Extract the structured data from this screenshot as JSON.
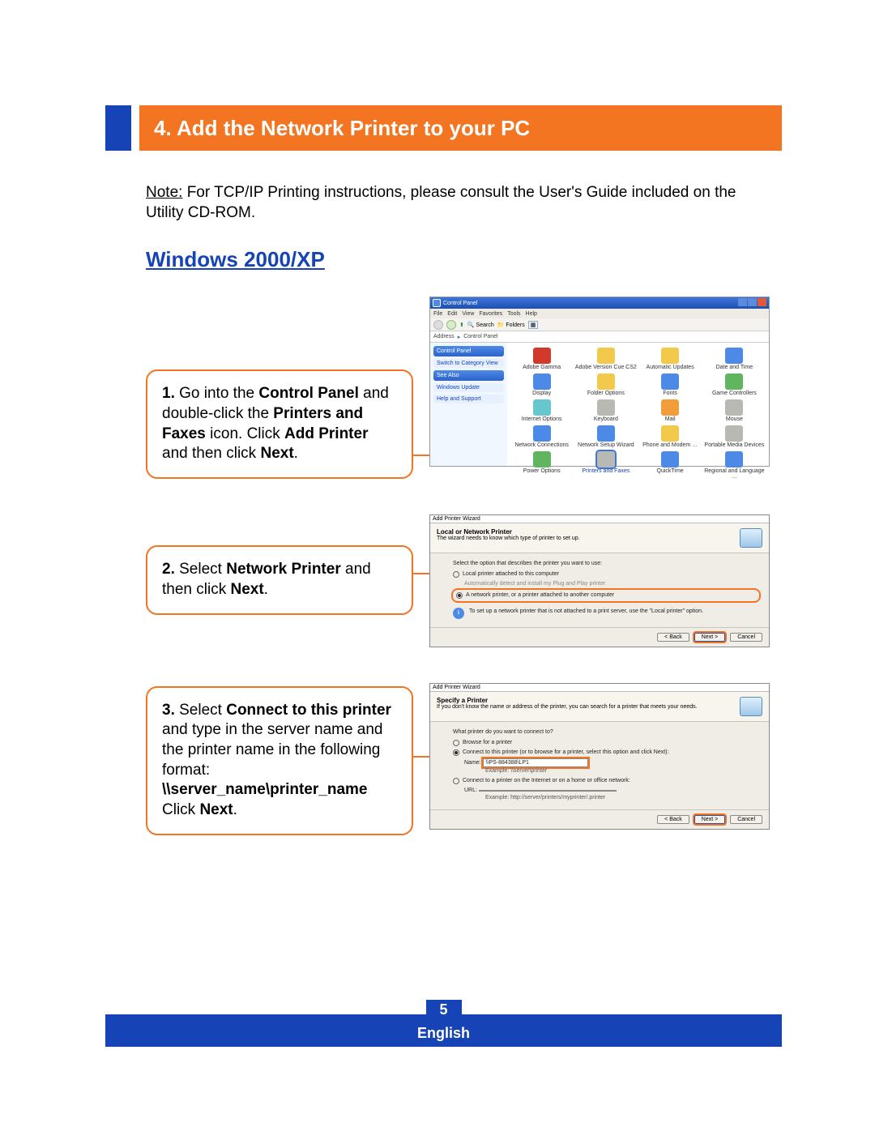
{
  "header": {
    "title": "4. Add the Network Printer to your PC"
  },
  "note": {
    "label": "Note:",
    "text": " For TCP/IP Printing instructions, please consult the User's Guide included on the Utility CD-ROM."
  },
  "section_heading": "Windows 2000/XP",
  "steps": {
    "s1": {
      "num": "1.",
      "a": " Go into the ",
      "b": "Control Panel",
      "c": " and double-click the ",
      "d": "Printers and Faxes",
      "e": " icon. Click ",
      "f": "Add Printer",
      "g": " and then click ",
      "h": "Next",
      "i": "."
    },
    "s2": {
      "num": "2.",
      "a": " Select ",
      "b": "Network Printer",
      "c": " and then click ",
      "d": "Next",
      "e": "."
    },
    "s3": {
      "num": "3.",
      "a": " Select ",
      "b": "Connect to this printer",
      "c": " and type in the server name and the printer name in the following format:",
      "path": "\\\\server_name\\printer_name",
      "d": "Click ",
      "e": "Next",
      "f": "."
    }
  },
  "cp": {
    "title": "Control Panel",
    "menu": [
      "File",
      "Edit",
      "View",
      "Favorites",
      "Tools",
      "Help"
    ],
    "toolbar": {
      "search": "Search",
      "folders": "Folders"
    },
    "address_label": "Address",
    "address_value": "Control Panel",
    "side": {
      "heading": "Control Panel",
      "switch": "Switch to Category View",
      "see_also": "See Also",
      "win_update": "Windows Update",
      "help": "Help and Support"
    },
    "icons": [
      {
        "label": "Adobe Gamma",
        "cls": "ic-red"
      },
      {
        "label": "Adobe Version Cue CS2",
        "cls": "ic-yel"
      },
      {
        "label": "Automatic Updates",
        "cls": "ic-yel"
      },
      {
        "label": "Date and Time",
        "cls": "ic-blu"
      },
      {
        "label": "Display",
        "cls": "ic-blu"
      },
      {
        "label": "Folder Options",
        "cls": "ic-yel"
      },
      {
        "label": "Fonts",
        "cls": "ic-blu"
      },
      {
        "label": "Game Controllers",
        "cls": "ic-grn"
      },
      {
        "label": "Internet Options",
        "cls": "ic-cyan"
      },
      {
        "label": "Keyboard",
        "cls": "ic-gry"
      },
      {
        "label": "Mail",
        "cls": "ic-org"
      },
      {
        "label": "Mouse",
        "cls": "ic-gry"
      },
      {
        "label": "Network Connections",
        "cls": "ic-blu"
      },
      {
        "label": "Network Setup Wizard",
        "cls": "ic-blu"
      },
      {
        "label": "Phone and Modem …",
        "cls": "ic-yel"
      },
      {
        "label": "Portable Media Devices",
        "cls": "ic-gry"
      },
      {
        "label": "Power Options",
        "cls": "ic-grn"
      },
      {
        "label": "Printers and Faxes",
        "cls": "ic-gry",
        "sel": true
      },
      {
        "label": "QuickTime",
        "cls": "ic-blu"
      },
      {
        "label": "Regional and Language …",
        "cls": "ic-blu"
      }
    ]
  },
  "wiz1": {
    "title": "Add Printer Wizard",
    "heading": "Local or Network Printer",
    "sub": "The wizard needs to know which type of printer to set up.",
    "prompt": "Select the option that describes the printer you want to use:",
    "opt_local": "Local printer attached to this computer",
    "opt_local_sub": "Automatically detect and install my Plug and Play printer",
    "opt_net": "A network printer, or a printer attached to another computer",
    "info": "To set up a network printer that is not attached to a print server, use the \"Local printer\" option.",
    "btn_back": "< Back",
    "btn_next": "Next >",
    "btn_cancel": "Cancel"
  },
  "wiz2": {
    "title": "Add Printer Wizard",
    "heading": "Specify a Printer",
    "sub": "If you don't know the name or address of the printer, you can search for a printer that meets your needs.",
    "prompt": "What printer do you want to connect to?",
    "opt_browse": "Browse for a printer",
    "opt_connect": "Connect to this printer (or to browse for a printer, select this option and click Next):",
    "name_label": "Name:",
    "name_value": "\\\\PS-884388\\LP1",
    "example1": "Example: \\\\server\\printer",
    "opt_url": "Connect to a printer on the Internet or on a home or office network:",
    "url_label": "URL:",
    "example2": "Example: http://server/printers/myprinter/.printer",
    "btn_back": "< Back",
    "btn_next": "Next >",
    "btn_cancel": "Cancel"
  },
  "footer": {
    "page": "5",
    "lang": "English"
  },
  "colors": {
    "orange": "#f37521",
    "blue": "#1643b5"
  }
}
